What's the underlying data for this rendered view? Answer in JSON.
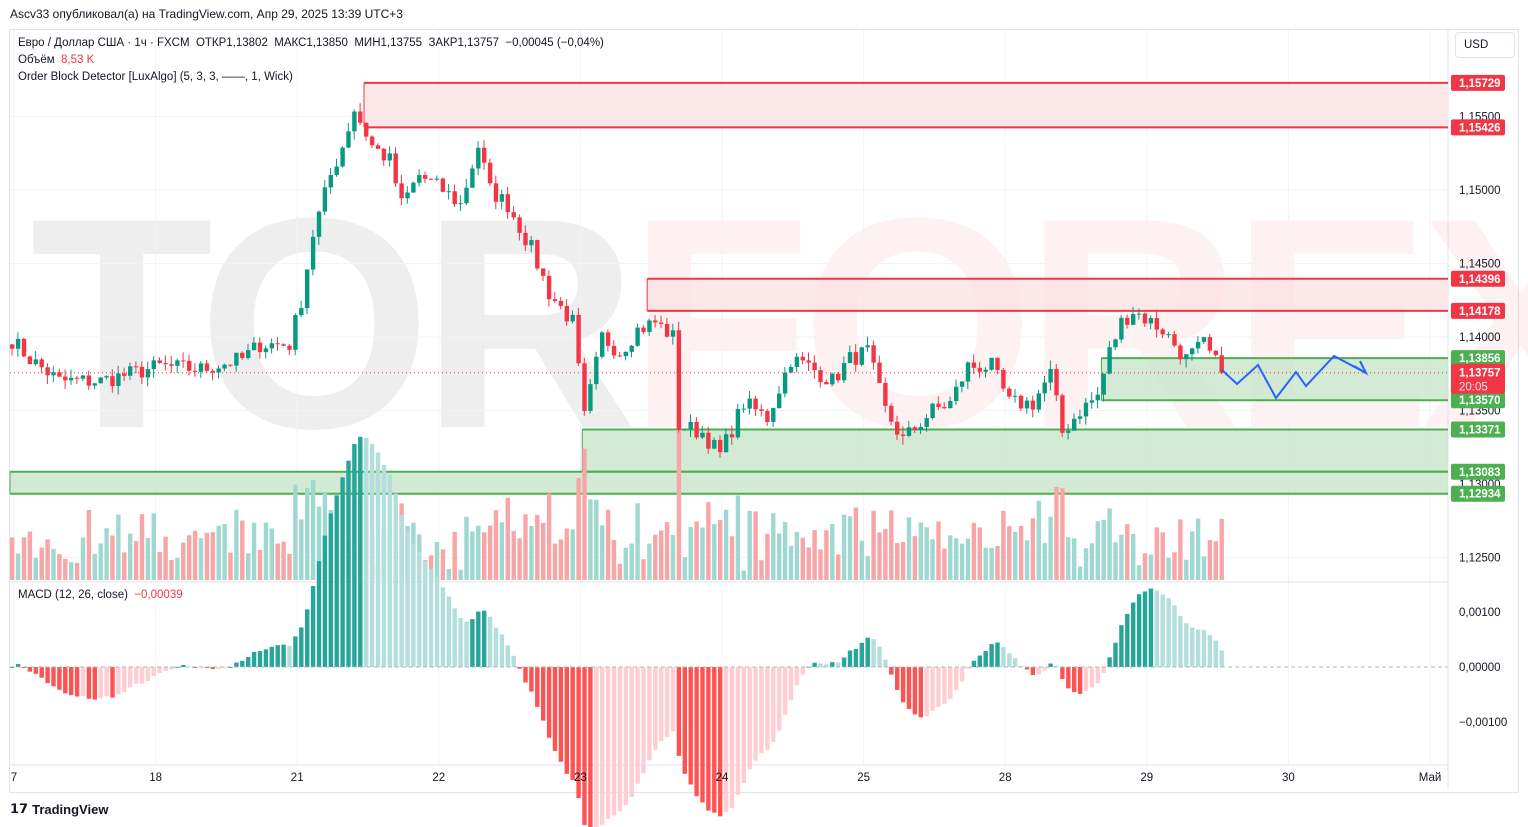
{
  "header": {
    "published": "Ascv33 опубликовал(а) на TradingView.com, Апр 29, 2025 13:39 UTC+3"
  },
  "legend": {
    "symbol": "Евро / Доллар США · 1ч · FXCM",
    "open": "ОТКР1,13802",
    "high": "МАКС1,13850",
    "low": "МИН1,13755",
    "close": "ЗАКР1,13757",
    "change": "−0,00045 (−0,04%)",
    "volume_label": "Объём",
    "volume_value": "8,53 K",
    "indicator": "Order Block Detector [LuxAlgo] (5, 3, 3, ——, 1, Wick)"
  },
  "macd": {
    "label": "MACD (12, 26, close)",
    "value": "−0,00039"
  },
  "currency": "USD",
  "watermark": {
    "text": "TORFOREX.COM"
  },
  "footer": {
    "brand": "TradingView"
  },
  "colors": {
    "bear": "#f23645",
    "bull": "#089981",
    "bull_zone": "#4caf50",
    "bear_zone_fill": "#fde2e4",
    "bull_zone_fill": "#c8e6c9",
    "projection": "#2962ff"
  },
  "chart_data": {
    "type": "candlestick",
    "title": "EUR/USD 1h FXCM",
    "ylim": [
      1.1235,
      1.159
    ],
    "y_ticks": [
      "1,15500",
      "1,15000",
      "1,14500",
      "1,14000",
      "1,13500",
      "1,13000",
      "1,12500"
    ],
    "y_tick_values": [
      1.155,
      1.15,
      1.145,
      1.14,
      1.135,
      1.13,
      1.125
    ],
    "x_ticks": [
      "7",
      "18",
      "21",
      "22",
      "23",
      "24",
      "25",
      "28",
      "29",
      "30",
      "Май"
    ],
    "x_tick_hours": [
      0,
      24,
      48,
      72,
      96,
      120,
      144,
      168,
      192,
      216,
      240
    ],
    "close_keypoints": [
      [
        0,
        1.1398
      ],
      [
        3,
        1.1385
      ],
      [
        8,
        1.137
      ],
      [
        15,
        1.137
      ],
      [
        20,
        1.1375
      ],
      [
        25,
        1.138
      ],
      [
        32,
        1.1378
      ],
      [
        39,
        1.1385
      ],
      [
        42,
        1.1395
      ],
      [
        47,
        1.1395
      ],
      [
        49,
        1.1425
      ],
      [
        51,
        1.147
      ],
      [
        54,
        1.151
      ],
      [
        56,
        1.153
      ],
      [
        58,
        1.1555
      ],
      [
        61,
        1.153
      ],
      [
        64,
        1.152
      ],
      [
        66,
        1.149
      ],
      [
        69,
        1.151
      ],
      [
        73,
        1.15
      ],
      [
        76,
        1.149
      ],
      [
        79,
        1.153
      ],
      [
        81,
        1.15
      ],
      [
        84,
        1.149
      ],
      [
        88,
        1.146
      ],
      [
        91,
        1.143
      ],
      [
        95,
        1.141
      ],
      [
        97,
        1.1345
      ],
      [
        100,
        1.14
      ],
      [
        103,
        1.139
      ],
      [
        106,
        1.1405
      ],
      [
        109,
        1.141
      ],
      [
        112,
        1.14
      ],
      [
        113,
        1.134
      ],
      [
        117,
        1.1335
      ],
      [
        120,
        1.132
      ],
      [
        124,
        1.1355
      ],
      [
        128,
        1.1345
      ],
      [
        132,
        1.1385
      ],
      [
        135,
        1.138
      ],
      [
        139,
        1.137
      ],
      [
        142,
        1.1385
      ],
      [
        145,
        1.139
      ],
      [
        148,
        1.135
      ],
      [
        151,
        1.133
      ],
      [
        156,
        1.135
      ],
      [
        159,
        1.1355
      ],
      [
        162,
        1.138
      ],
      [
        166,
        1.138
      ],
      [
        169,
        1.1355
      ],
      [
        173,
        1.1355
      ],
      [
        176,
        1.1375
      ],
      [
        178,
        1.1335
      ],
      [
        181,
        1.135
      ],
      [
        184,
        1.136
      ],
      [
        186,
        1.139
      ],
      [
        188,
        1.141
      ],
      [
        190,
        1.1418
      ],
      [
        195,
        1.1405
      ],
      [
        199,
        1.1385
      ],
      [
        202,
        1.1395
      ],
      [
        205,
        1.13757
      ]
    ],
    "order_blocks": [
      {
        "type": "bearish",
        "top": 1.15729,
        "bottom": 1.15426,
        "start_hour": 60,
        "top_label": "1,15729",
        "bottom_label": "1,15426"
      },
      {
        "type": "bearish",
        "top": 1.14396,
        "bottom": 1.14178,
        "start_hour": 108,
        "top_label": "1,14396",
        "bottom_label": "1,14178"
      },
      {
        "type": "bullish",
        "top": 1.13856,
        "bottom": 1.1357,
        "start_hour": 185,
        "top_label": "1,13856",
        "bottom_label": "1,13570"
      },
      {
        "type": "bullish",
        "top": 1.13371,
        "bottom": 1.13083,
        "start_hour": 97,
        "top_label": "1,13371",
        "bottom_label": "1,13083"
      },
      {
        "type": "bullish",
        "top": 1.13083,
        "bottom": 1.12934,
        "start_hour": 0,
        "top_label": "",
        "bottom_label": "1,12934"
      }
    ],
    "last_price": {
      "value": 1.13757,
      "label": "1,13757",
      "countdown": "20:05"
    },
    "macd_ylim": [
      -0.0015,
      0.0013
    ],
    "macd_ticks": [
      "0,00100",
      "0,00000",
      "−0,00100"
    ],
    "macd_tick_values": [
      0.001,
      0,
      -0.001
    ]
  }
}
